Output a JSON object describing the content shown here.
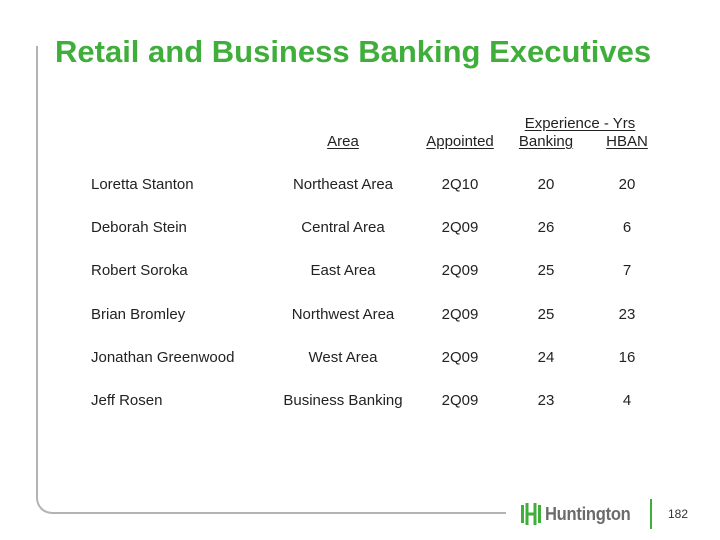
{
  "title": "Retail and Business Banking Executives",
  "table": {
    "group_header": "Experience - Yrs",
    "columns": {
      "area": "Area",
      "appointed": "Appointed",
      "banking": "Banking",
      "hban": "HBAN"
    },
    "rows": [
      {
        "name": "Loretta Stanton",
        "area": "Northeast Area",
        "appointed": "2Q10",
        "banking": "20",
        "hban": "20"
      },
      {
        "name": "Deborah Stein",
        "area": "Central Area",
        "appointed": "2Q09",
        "banking": "26",
        "hban": "6"
      },
      {
        "name": "Robert Soroka",
        "area": "East Area",
        "appointed": "2Q09",
        "banking": "25",
        "hban": "7"
      },
      {
        "name": "Brian Bromley",
        "area": "Northwest Area",
        "appointed": "2Q09",
        "banking": "25",
        "hban": "23"
      },
      {
        "name": "Jonathan Greenwood",
        "area": "West Area",
        "appointed": "2Q09",
        "banking": "24",
        "hban": "16"
      },
      {
        "name": "Jeff Rosen",
        "area": "Business Banking",
        "appointed": "2Q09",
        "banking": "23",
        "hban": "4"
      }
    ]
  },
  "footer": {
    "logo_text": "Huntington",
    "logo_icon": "huntington-logo-icon",
    "page_number": "182"
  },
  "colors": {
    "title": "#3fae3a",
    "frame": "#b3b3b3",
    "logo_mark": "#3fae3a",
    "logo_text": "#6b6b6b"
  }
}
